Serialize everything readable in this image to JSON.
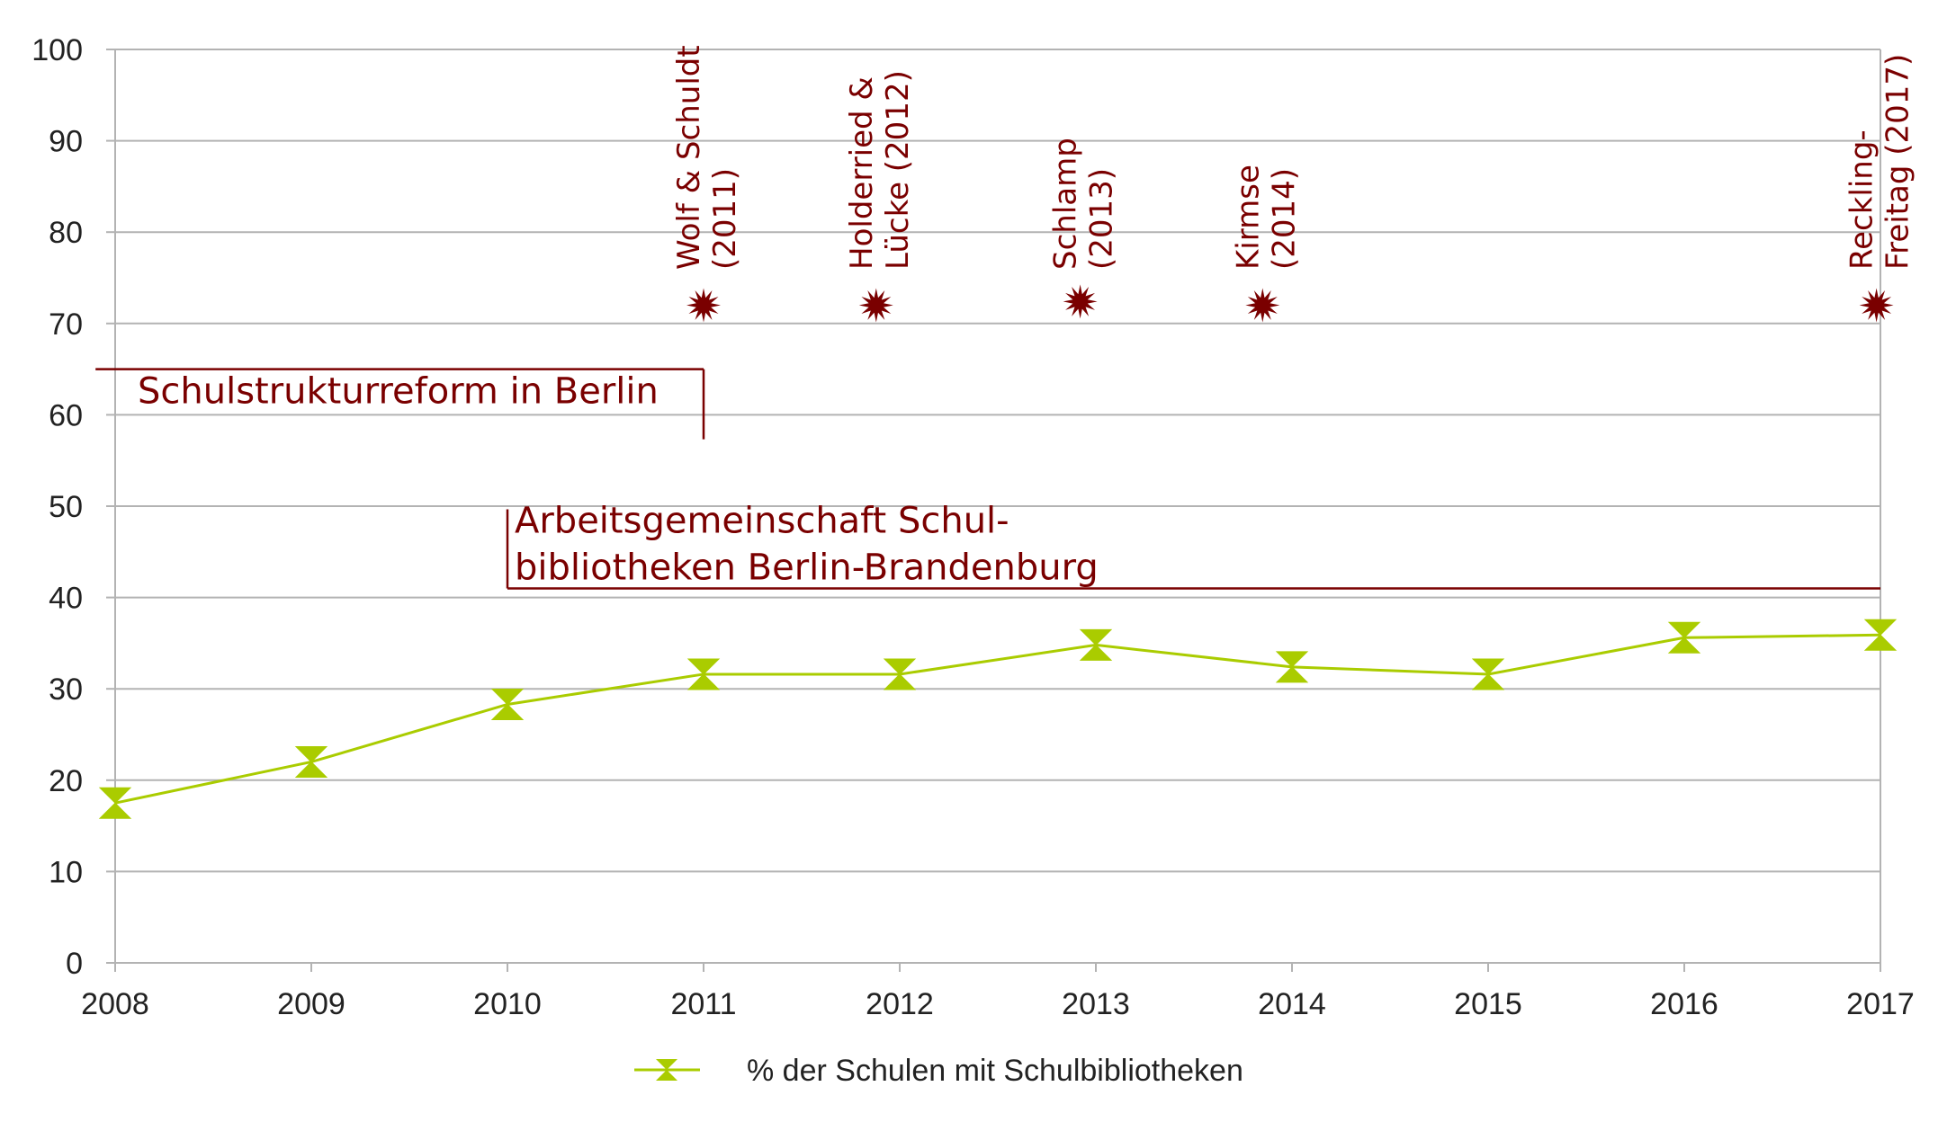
{
  "chart_data": {
    "type": "line",
    "x": [
      2008,
      2009,
      2010,
      2011,
      2012,
      2013,
      2014,
      2015,
      2016,
      2017
    ],
    "series": [
      {
        "name": "% der Schulen mit Schulbibliotheken",
        "values": [
          17.5,
          22,
          28.3,
          31.6,
          31.6,
          34.8,
          32.4,
          31.6,
          35.6,
          35.9
        ],
        "color": "#aacc00"
      }
    ],
    "ylim": [
      0,
      100
    ],
    "yticks": [
      0,
      10,
      20,
      30,
      40,
      50,
      60,
      70,
      80,
      90,
      100
    ],
    "grid": true,
    "legend": "bottom-center",
    "markers": [
      {
        "x": 2011.0,
        "y": 72,
        "label_lines": [
          "Wolf & Schuldt",
          "(2011)"
        ]
      },
      {
        "x": 2011.88,
        "y": 72,
        "label_lines": [
          "Holderried &",
          "Lücke (2012)"
        ]
      },
      {
        "x": 2012.92,
        "y": 72.4,
        "label_lines": [
          "Schlamp",
          "(2013)"
        ]
      },
      {
        "x": 2013.85,
        "y": 72,
        "label_lines": [
          "Kirmse",
          "(2014)"
        ]
      },
      {
        "x": 2016.98,
        "y": 72,
        "label_lines": [
          "Reckling-",
          "Freitag (2017)"
        ]
      }
    ],
    "marker_color": "#7a0000",
    "periods": [
      {
        "name": "reform",
        "label_lines": [
          "Schulstrukturreform in Berlin"
        ],
        "x_start": 2007.9,
        "x_end": 2011.0,
        "y": 65
      },
      {
        "name": "ag",
        "label_lines": [
          "Arbeitsgemeinschaft Schul-",
          "bibliotheken Berlin-Brandenburg"
        ],
        "x_start": 2010.0,
        "x_end": 2017.0,
        "y": 41
      }
    ]
  }
}
